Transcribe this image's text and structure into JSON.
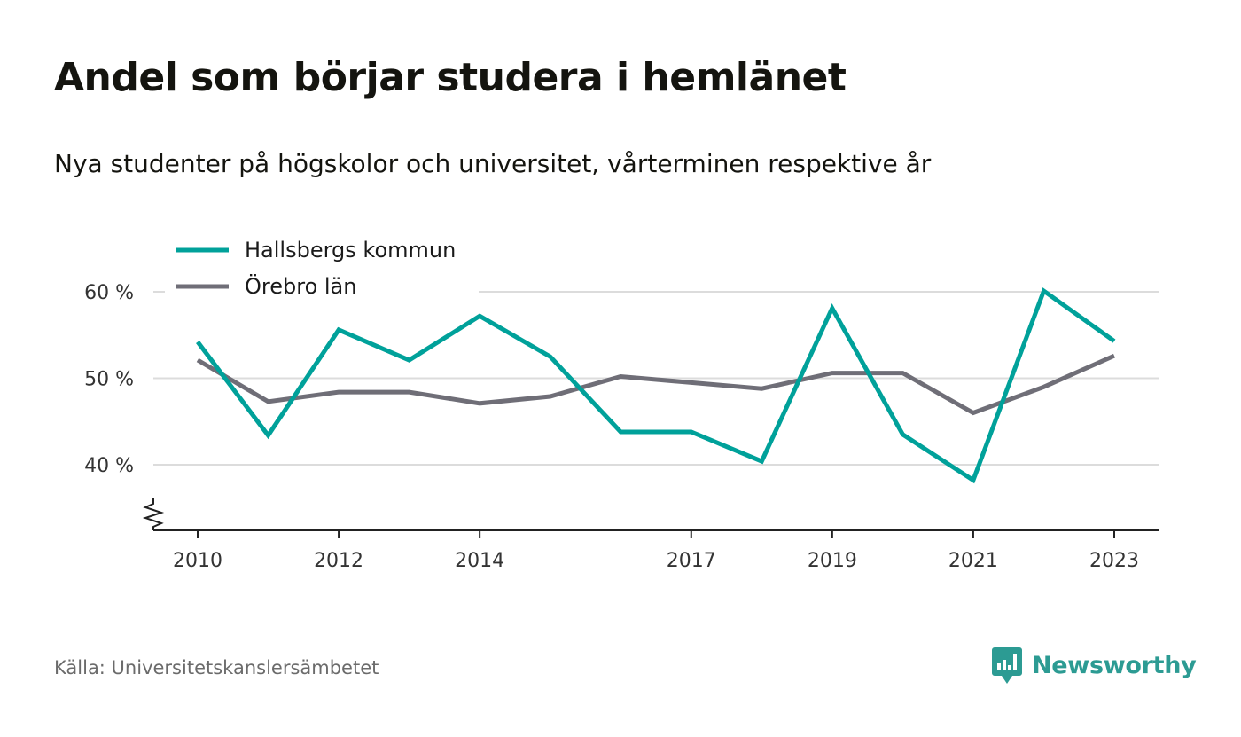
{
  "title": "Andel som börjar studera i hemlänet",
  "subtitle": "Nya studenter på högskolor och universitet, vårterminen respektive år",
  "source": "Källa: Universitetskanslersämbetet",
  "brand": {
    "name": "Newsworthy",
    "color": "#2c9b93",
    "icon": "newsworthy-logo-icon"
  },
  "chart_data": {
    "type": "line",
    "title": "Andel som börjar studera i hemlänet",
    "subtitle": "Nya studenter på högskolor och universitet, vårterminen respektive år",
    "xlabel": "",
    "ylabel": "",
    "x": [
      2010,
      2011,
      2012,
      2013,
      2014,
      2015,
      2016,
      2017,
      2018,
      2019,
      2020,
      2021,
      2022,
      2023
    ],
    "x_ticks": [
      "2010",
      "2012",
      "2014",
      "2017",
      "2019",
      "2021",
      "2023"
    ],
    "y_ticks": [
      40,
      50,
      60
    ],
    "y_tick_labels": [
      "40 %",
      "50 %",
      "60 %"
    ],
    "ylim": [
      33,
      62
    ],
    "y_axis_broken": true,
    "grid": true,
    "legend_position": "top-left",
    "series": [
      {
        "name": "Hallsbergs kommun",
        "color": "#00a19a",
        "values": [
          54.2,
          43.4,
          55.6,
          52.1,
          57.2,
          52.5,
          43.8,
          43.8,
          40.4,
          58.1,
          43.5,
          38.2,
          60.1,
          54.3
        ]
      },
      {
        "name": "Örebro län",
        "color": "#6f6e77",
        "values": [
          52.1,
          47.3,
          48.4,
          48.4,
          47.1,
          47.9,
          50.2,
          49.5,
          48.8,
          50.6,
          50.6,
          46.0,
          49.0,
          52.6
        ]
      }
    ]
  }
}
